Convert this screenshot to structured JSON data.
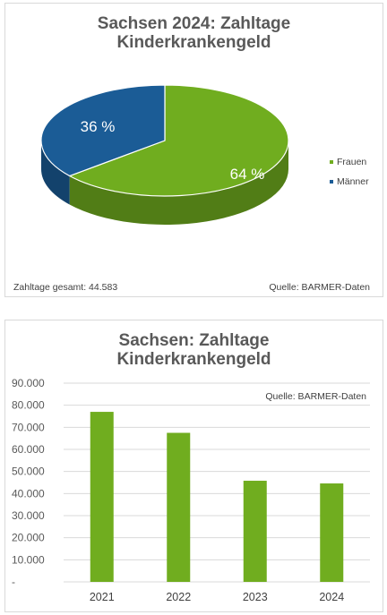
{
  "chart_data": [
    {
      "type": "pie",
      "title": "Sachsen 2024: Zahltage\nKinderkrankengeld",
      "title_lines": [
        "Sachsen 2024: Zahltage",
        "Kinderkrankengeld"
      ],
      "slices": [
        {
          "label": "Frauen",
          "value": 64,
          "value_label": "64 %",
          "color": "#70ad1f"
        },
        {
          "label": "Männer",
          "value": 36,
          "value_label": "36 %",
          "color": "#1b5c96"
        }
      ],
      "legend_position": "right",
      "footnote_left": "Zahltage gesamt: 44.583",
      "footnote_right": "Quelle: BARMER-Daten"
    },
    {
      "type": "bar",
      "title_lines": [
        "Sachsen: Zahltage",
        "Kinderkrankengeld"
      ],
      "categories": [
        "2021",
        "2022",
        "2023",
        "2024"
      ],
      "values": [
        77000,
        67500,
        45800,
        44583
      ],
      "ylim": [
        0,
        90000
      ],
      "yticks": [
        "-",
        "10.000",
        "20.000",
        "30.000",
        "40.000",
        "50.000",
        "60.000",
        "70.000",
        "80.000",
        "90.000"
      ],
      "grid": true,
      "bar_color": "#70ad1f",
      "annotation": "Quelle: BARMER-Daten"
    }
  ]
}
